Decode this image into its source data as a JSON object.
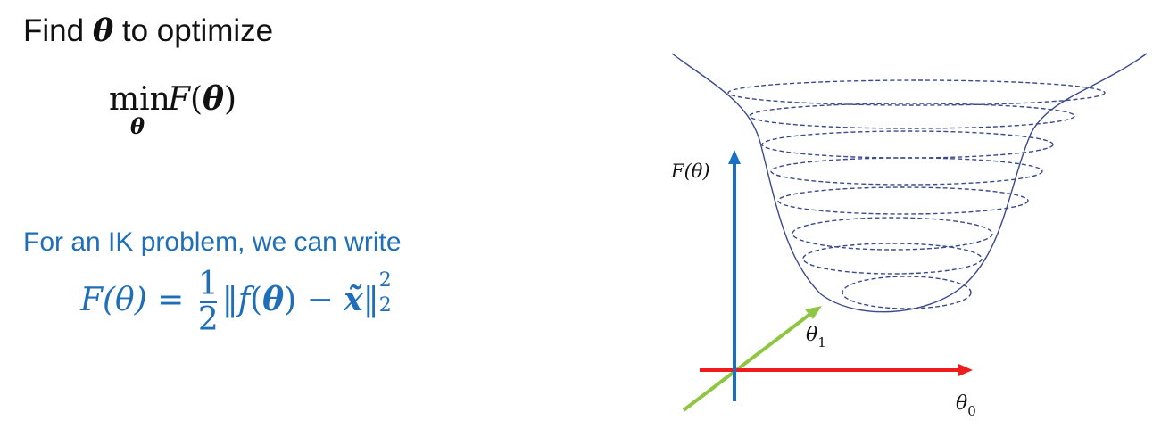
{
  "heading": {
    "prefix": "Find ",
    "symbol": "θ",
    "suffix": " to optimize"
  },
  "objective": {
    "operator": "min",
    "operator_sub": "θ",
    "function": "F",
    "open_paren": "(",
    "symbol": "θ",
    "close_paren": ")"
  },
  "ik_note": {
    "text": "For an IK problem, we can write",
    "lhs": "F(θ) =",
    "frac_num": "1",
    "frac_den": "2",
    "norm_open": "‖",
    "fn": "f",
    "fn_open": "(",
    "fn_arg": "θ",
    "fn_close": ") −",
    "target": "x̃",
    "norm_close": "‖",
    "norm_sup": "2",
    "norm_sub": "2",
    "color": "#1f6fb8"
  },
  "diagram": {
    "y_axis_label": "F(θ)",
    "x0_label": "θ",
    "x0_sub": "0",
    "x1_label": "θ",
    "x1_sub": "1",
    "colors": {
      "y_axis": "#1a6fc4",
      "x0_axis": "#ee1c1c",
      "x1_axis": "#8ec641",
      "surface": "#3a4a8a"
    }
  }
}
